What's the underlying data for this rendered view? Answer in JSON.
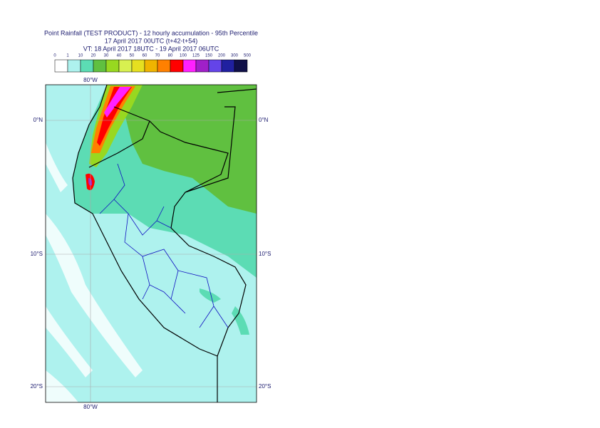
{
  "header": {
    "title_lines": [
      "Point Rainfall (TEST PRODUCT) - 12 hourly accumulation - 95th Percentile",
      "17 April 2017 00UTC (t+42-t+54)",
      "VT: 18 April 2017 18UTC - 19 April 2017 06UTC"
    ]
  },
  "legend": {
    "labels": [
      "0",
      "1",
      "10",
      "20",
      "30",
      "40",
      "50",
      "60",
      "70",
      "80",
      "100",
      "125",
      "150",
      "200",
      "300",
      "500"
    ],
    "colors": [
      "#ffffff",
      "#aef2ee",
      "#5cdcb4",
      "#60c040",
      "#98d820",
      "#d8f050",
      "#e6e020",
      "#f0b400",
      "#ff8000",
      "#ff0000",
      "#ff20ff",
      "#a020c8",
      "#6444e8",
      "#2020a0",
      "#101048"
    ]
  },
  "map": {
    "lon_label_top": "80°W",
    "lon_label_bottom": "80°W",
    "lat_labels_left": [
      "0°N",
      "10°S",
      "20°S"
    ],
    "lat_labels_right": [
      "0°N",
      "10°S",
      "20°S"
    ]
  }
}
